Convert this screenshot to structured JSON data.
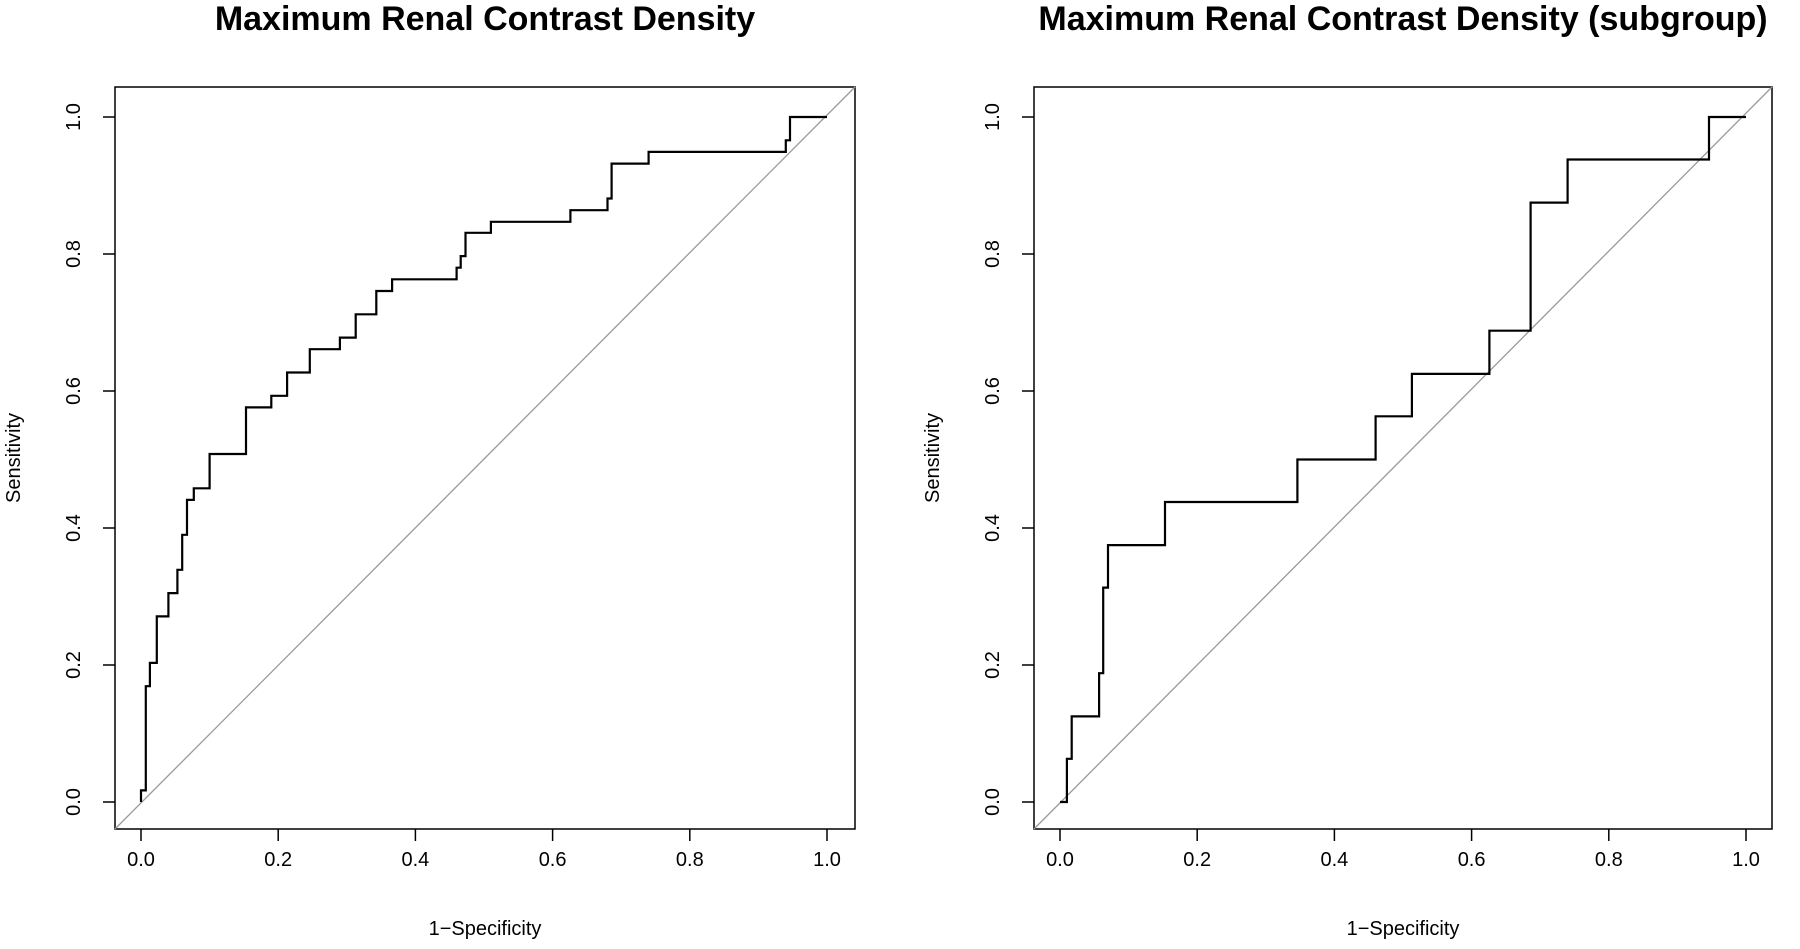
{
  "chart_data": [
    {
      "type": "line",
      "step": true,
      "title": "Maximum Renal Contrast Density",
      "xlabel": "1−Specificity",
      "ylabel": "Sensitivity",
      "xlim": [
        0,
        1
      ],
      "ylim": [
        0,
        1
      ],
      "xticks": [
        "0.0",
        "0.2",
        "0.4",
        "0.6",
        "0.8",
        "1.0"
      ],
      "yticks": [
        "0.0",
        "0.2",
        "0.4",
        "0.6",
        "0.8",
        "1.0"
      ],
      "diagonal": true,
      "points": [
        [
          0,
          0
        ],
        [
          0,
          0.017
        ],
        [
          0.007,
          0.017
        ],
        [
          0.007,
          0.169
        ],
        [
          0.013,
          0.169
        ],
        [
          0.013,
          0.203
        ],
        [
          0.023,
          0.203
        ],
        [
          0.023,
          0.271
        ],
        [
          0.04,
          0.271
        ],
        [
          0.04,
          0.305
        ],
        [
          0.053,
          0.305
        ],
        [
          0.053,
          0.339
        ],
        [
          0.06,
          0.339
        ],
        [
          0.06,
          0.39
        ],
        [
          0.067,
          0.39
        ],
        [
          0.067,
          0.441
        ],
        [
          0.077,
          0.441
        ],
        [
          0.077,
          0.458
        ],
        [
          0.1,
          0.458
        ],
        [
          0.1,
          0.508
        ],
        [
          0.153,
          0.508
        ],
        [
          0.153,
          0.576
        ],
        [
          0.19,
          0.576
        ],
        [
          0.19,
          0.593
        ],
        [
          0.213,
          0.593
        ],
        [
          0.213,
          0.627
        ],
        [
          0.246,
          0.627
        ],
        [
          0.246,
          0.661
        ],
        [
          0.29,
          0.661
        ],
        [
          0.29,
          0.678
        ],
        [
          0.313,
          0.678
        ],
        [
          0.313,
          0.712
        ],
        [
          0.343,
          0.712
        ],
        [
          0.343,
          0.746
        ],
        [
          0.366,
          0.746
        ],
        [
          0.366,
          0.763
        ],
        [
          0.46,
          0.763
        ],
        [
          0.46,
          0.78
        ],
        [
          0.466,
          0.78
        ],
        [
          0.466,
          0.797
        ],
        [
          0.473,
          0.797
        ],
        [
          0.473,
          0.831
        ],
        [
          0.51,
          0.831
        ],
        [
          0.51,
          0.847
        ],
        [
          0.626,
          0.847
        ],
        [
          0.626,
          0.864
        ],
        [
          0.68,
          0.864
        ],
        [
          0.68,
          0.881
        ],
        [
          0.686,
          0.881
        ],
        [
          0.686,
          0.932
        ],
        [
          0.74,
          0.932
        ],
        [
          0.74,
          0.949
        ],
        [
          0.94,
          0.949
        ],
        [
          0.94,
          0.966
        ],
        [
          0.946,
          0.966
        ],
        [
          0.946,
          1.0
        ],
        [
          1.0,
          1.0
        ]
      ]
    },
    {
      "type": "line",
      "step": true,
      "title": "Maximum Renal Contrast Density (subgroup)",
      "xlabel": "1−Specificity",
      "ylabel": "Sensitivity",
      "xlim": [
        0,
        1
      ],
      "ylim": [
        0,
        1
      ],
      "xticks": [
        "0.0",
        "0.2",
        "0.4",
        "0.6",
        "0.8",
        "1.0"
      ],
      "yticks": [
        "0.0",
        "0.2",
        "0.4",
        "0.6",
        "0.8",
        "1.0"
      ],
      "diagonal": true,
      "points": [
        [
          0,
          0
        ],
        [
          0.01,
          0
        ],
        [
          0.01,
          0.063
        ],
        [
          0.017,
          0.063
        ],
        [
          0.017,
          0.125
        ],
        [
          0.057,
          0.125
        ],
        [
          0.057,
          0.188
        ],
        [
          0.063,
          0.188
        ],
        [
          0.063,
          0.313
        ],
        [
          0.07,
          0.313
        ],
        [
          0.07,
          0.375
        ],
        [
          0.153,
          0.375
        ],
        [
          0.153,
          0.438
        ],
        [
          0.346,
          0.438
        ],
        [
          0.346,
          0.5
        ],
        [
          0.46,
          0.5
        ],
        [
          0.46,
          0.563
        ],
        [
          0.513,
          0.563
        ],
        [
          0.513,
          0.625
        ],
        [
          0.626,
          0.625
        ],
        [
          0.626,
          0.688
        ],
        [
          0.686,
          0.688
        ],
        [
          0.686,
          0.875
        ],
        [
          0.74,
          0.875
        ],
        [
          0.74,
          0.938
        ],
        [
          0.946,
          0.938
        ],
        [
          0.946,
          1.0
        ],
        [
          1.0,
          1.0
        ]
      ]
    }
  ]
}
